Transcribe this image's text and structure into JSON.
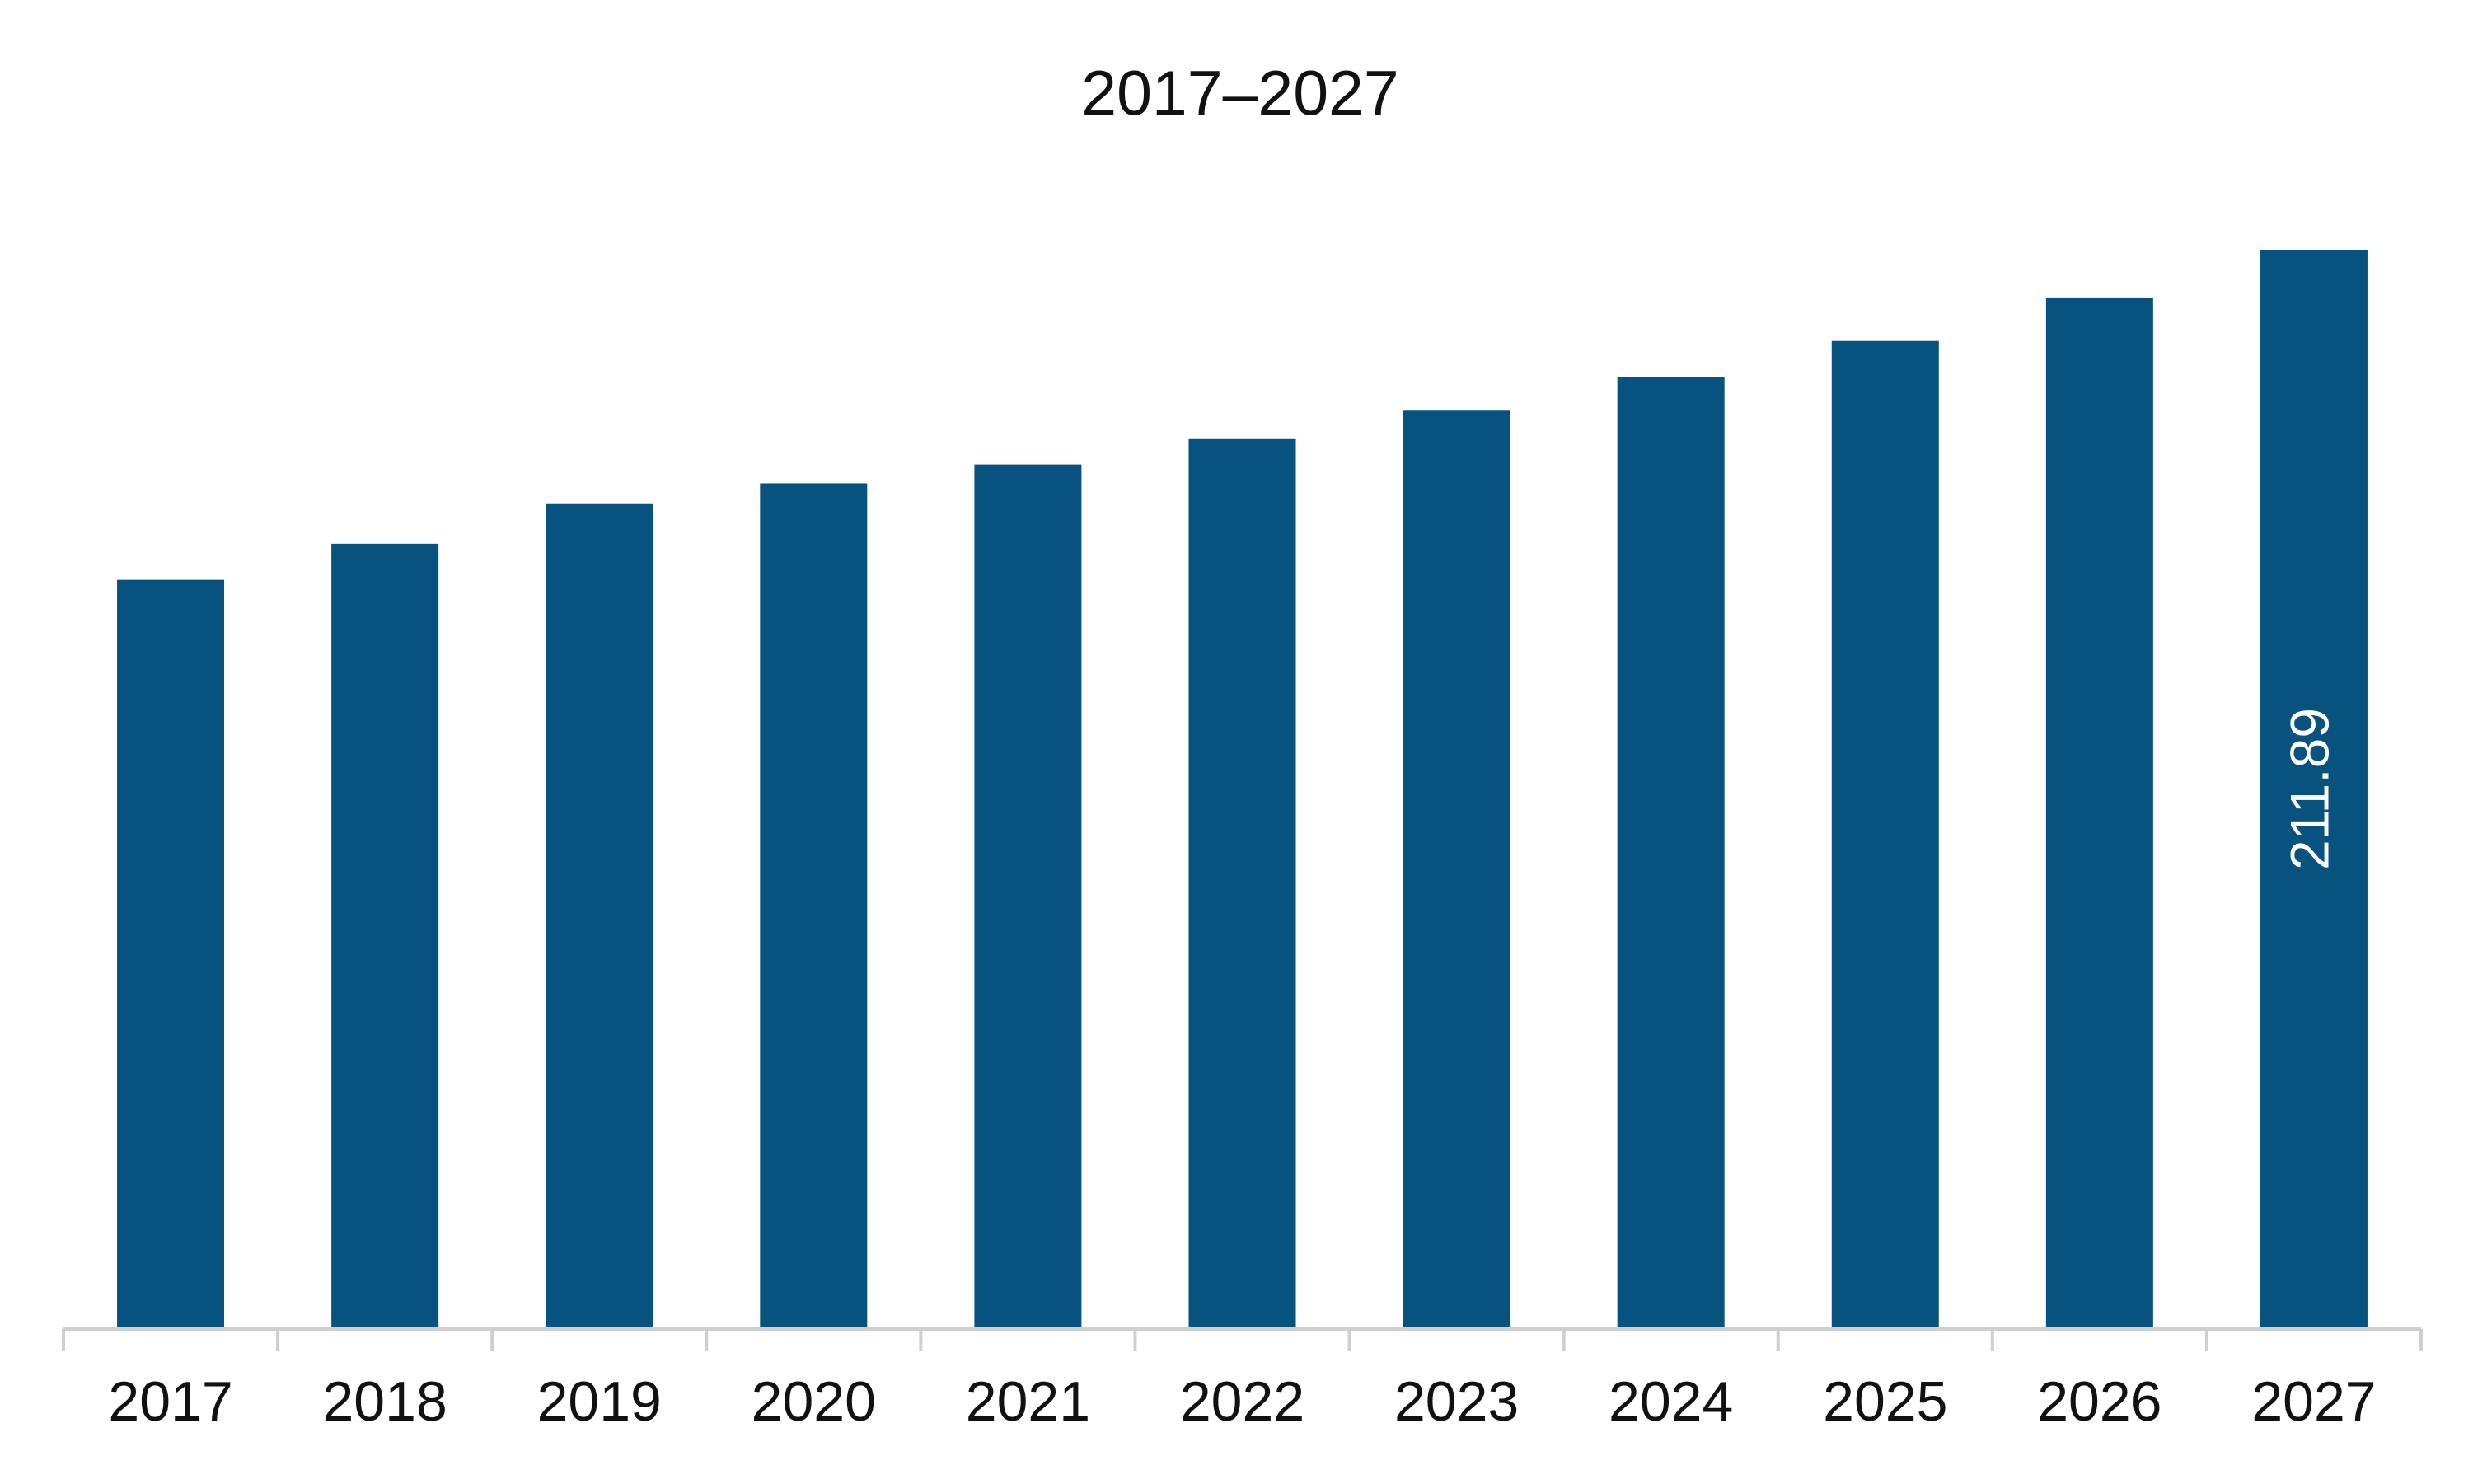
{
  "chart_data": {
    "type": "bar",
    "title": "2017–2027",
    "categories": [
      "2017",
      "2018",
      "2019",
      "2020",
      "2021",
      "2022",
      "2023",
      "2024",
      "2025",
      "2026",
      "2027"
    ],
    "values": [
      147.1,
      154.2,
      162.0,
      166.1,
      169.8,
      174.8,
      180.4,
      187.0,
      194.1,
      202.5,
      211.89
    ],
    "value_labels": [
      null,
      null,
      null,
      null,
      null,
      null,
      null,
      null,
      null,
      null,
      "211.89"
    ],
    "color": "#08527f"
  }
}
